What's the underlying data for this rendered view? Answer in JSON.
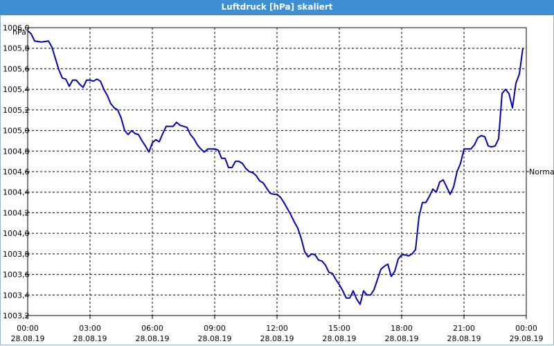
{
  "window": {
    "title": "Luftdruck [hPa] skaliert"
  },
  "chart_data": {
    "type": "line",
    "title": "Luftdruck [hPa] skaliert",
    "ylabel": "hPa",
    "xlabel": "",
    "reference_label": "Normal",
    "reference_value": 1004.6,
    "ylim": [
      1003.2,
      1006.0
    ],
    "yticks": [
      "1006,0",
      "1005,8",
      "1005,6",
      "1005,4",
      "1005,2",
      "1005,0",
      "1004,8",
      "1004,6",
      "1004,4",
      "1004,2",
      "1004,0",
      "1003,8",
      "1003,6",
      "1003,4",
      "1003,2"
    ],
    "xticks": [
      {
        "time": "00:00",
        "date": "28.08.19"
      },
      {
        "time": "03:00",
        "date": "28.08.19"
      },
      {
        "time": "06:00",
        "date": "28.08.19"
      },
      {
        "time": "09:00",
        "date": "28.08.19"
      },
      {
        "time": "12:00",
        "date": "28.08.19"
      },
      {
        "time": "15:00",
        "date": "28.08.19"
      },
      {
        "time": "18:00",
        "date": "28.08.19"
      },
      {
        "time": "21:00",
        "date": "28.08.19"
      },
      {
        "time": "00:00",
        "date": "29.08.19"
      }
    ],
    "grid": true,
    "line_color": "#0000b4",
    "series": [
      {
        "x": [
          "00:00",
          "00:10",
          "00:20",
          "00:40",
          "01:00",
          "01:10",
          "01:20",
          "01:30",
          "01:40",
          "01:50",
          "02:00",
          "02:10",
          "02:20",
          "02:30",
          "02:40",
          "02:50",
          "03:00",
          "03:10",
          "03:20",
          "03:30",
          "03:40",
          "03:50",
          "04:00",
          "04:10",
          "04:20",
          "04:30",
          "04:40",
          "04:50",
          "05:00",
          "05:10",
          "05:20",
          "05:30",
          "05:40",
          "05:50",
          "06:00",
          "06:10",
          "06:20",
          "06:30",
          "06:40",
          "06:50",
          "07:00",
          "07:10",
          "07:20",
          "07:30",
          "07:40",
          "07:50",
          "08:00",
          "08:10",
          "08:20",
          "08:30",
          "08:40",
          "08:50",
          "09:00",
          "09:10",
          "09:20",
          "09:30",
          "09:40",
          "09:50",
          "10:00",
          "10:10",
          "10:20",
          "10:30",
          "10:40",
          "10:50",
          "11:00",
          "11:10",
          "11:20",
          "11:30",
          "11:40",
          "11:50",
          "12:00",
          "12:10",
          "12:20",
          "12:30",
          "12:40",
          "12:50",
          "13:00",
          "13:10",
          "13:20",
          "13:30",
          "13:40",
          "13:50",
          "14:00",
          "14:10",
          "14:20",
          "14:30",
          "14:40",
          "14:50",
          "15:00",
          "15:10",
          "15:20",
          "15:30",
          "15:40",
          "15:50",
          "16:00",
          "16:10",
          "16:20",
          "16:30",
          "16:40",
          "16:50",
          "17:00",
          "17:10",
          "17:20",
          "17:30",
          "17:40",
          "17:50",
          "18:00",
          "18:10",
          "18:20",
          "18:30",
          "18:40",
          "18:50",
          "19:00",
          "19:10",
          "19:20",
          "19:30",
          "19:40",
          "19:50",
          "20:00",
          "20:10",
          "20:20",
          "20:30",
          "20:40",
          "20:50",
          "21:00",
          "21:10",
          "21:20",
          "21:30",
          "21:40",
          "21:50",
          "22:00",
          "22:10",
          "22:20",
          "22:30",
          "22:40",
          "22:50",
          "23:00",
          "23:10",
          "23:20",
          "23:30",
          "23:40",
          "23:50"
        ],
        "y": [
          1005.97,
          1005.94,
          1005.87,
          1005.86,
          1005.87,
          1005.81,
          1005.7,
          1005.59,
          1005.51,
          1005.5,
          1005.43,
          1005.49,
          1005.49,
          1005.45,
          1005.42,
          1005.49,
          1005.49,
          1005.48,
          1005.5,
          1005.48,
          1005.4,
          1005.34,
          1005.26,
          1005.22,
          1005.2,
          1005.12,
          1005.0,
          1004.96,
          1005.0,
          1004.97,
          1004.96,
          1004.9,
          1004.85,
          1004.79,
          1004.88,
          1004.91,
          1004.89,
          1004.97,
          1005.04,
          1005.04,
          1005.04,
          1005.08,
          1005.05,
          1005.04,
          1005.03,
          1004.96,
          1004.92,
          1004.86,
          1004.82,
          1004.79,
          1004.82,
          1004.82,
          1004.82,
          1004.81,
          1004.73,
          1004.73,
          1004.64,
          1004.64,
          1004.7,
          1004.7,
          1004.68,
          1004.63,
          1004.6,
          1004.59,
          1004.56,
          1004.51,
          1004.49,
          1004.44,
          1004.39,
          1004.38,
          1004.38,
          1004.35,
          1004.3,
          1004.24,
          1004.18,
          1004.11,
          1004.05,
          1003.95,
          1003.82,
          1003.77,
          1003.8,
          1003.79,
          1003.74,
          1003.73,
          1003.69,
          1003.62,
          1003.61,
          1003.55,
          1003.5,
          1003.44,
          1003.37,
          1003.37,
          1003.44,
          1003.36,
          1003.31,
          1003.44,
          1003.4,
          1003.4,
          1003.45,
          1003.55,
          1003.65,
          1003.68,
          1003.7,
          1003.58,
          1003.63,
          1003.75,
          1003.79,
          1003.79,
          1003.78,
          1003.8,
          1003.84,
          1004.16,
          1004.3,
          1004.3,
          1004.36,
          1004.43,
          1004.4,
          1004.5,
          1004.52,
          1004.45,
          1004.38,
          1004.45,
          1004.6,
          1004.68,
          1004.82,
          1004.82,
          1004.82,
          1004.86,
          1004.93,
          1004.95,
          1004.94,
          1004.85,
          1004.84,
          1004.85,
          1004.92,
          1005.36,
          1005.4,
          1005.36,
          1005.22,
          1005.46,
          1005.55,
          1005.8
        ]
      }
    ]
  }
}
